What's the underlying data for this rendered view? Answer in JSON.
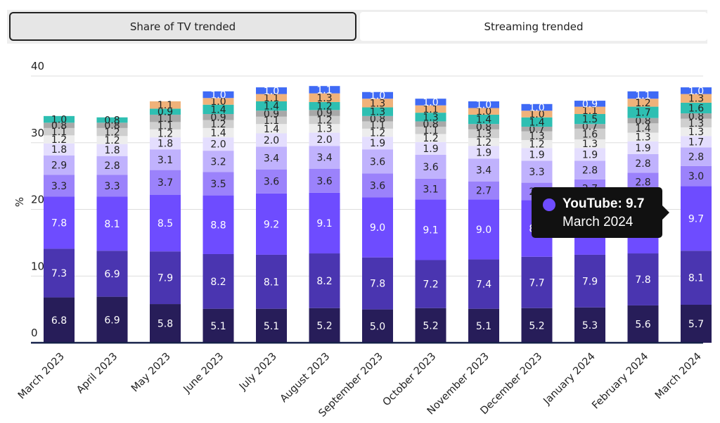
{
  "tabs": [
    {
      "label": "Share of TV trended",
      "active": true
    },
    {
      "label": "Streaming trended",
      "active": false
    }
  ],
  "tooltip": {
    "title": "YouTube: 9.7",
    "subtitle": "March 2024",
    "color": "#6e4cff"
  },
  "chart_data": {
    "type": "bar",
    "stacked": true,
    "ylabel": "%",
    "ylim": [
      0,
      40
    ],
    "yticks": [
      0,
      10,
      20,
      30,
      40
    ],
    "grid": true,
    "categories": [
      "March 2023",
      "April 2023",
      "May 2023",
      "June 2023",
      "July 2023",
      "August 2023",
      "September 2023",
      "October 2023",
      "November 2023",
      "December 2023",
      "January 2024",
      "February 2024",
      "March 2024"
    ],
    "series": [
      {
        "color": "#271d59",
        "label_color": "#ffffff",
        "values": [
          6.8,
          6.9,
          5.8,
          5.1,
          5.1,
          5.2,
          5.0,
          5.2,
          5.1,
          5.2,
          5.3,
          5.6,
          5.7
        ]
      },
      {
        "color": "#4a35b0",
        "label_color": "#ffffff",
        "values": [
          7.3,
          6.9,
          7.9,
          8.2,
          8.1,
          8.2,
          7.8,
          7.2,
          7.4,
          7.7,
          7.9,
          7.8,
          8.1
        ]
      },
      {
        "name": "YouTube",
        "color": "#6e4cff",
        "label_color": "#ffffff",
        "values": [
          7.8,
          8.1,
          8.5,
          8.8,
          9.2,
          9.1,
          9.0,
          9.1,
          9.0,
          8.5,
          8.6,
          9.3,
          9.7
        ]
      },
      {
        "color": "#9b82fb",
        "label_color": "#222222",
        "values": [
          3.3,
          3.3,
          3.7,
          3.5,
          3.6,
          3.6,
          3.6,
          3.1,
          2.7,
          2.6,
          2.7,
          2.8,
          3.0
        ]
      },
      {
        "color": "#c0b2fd",
        "label_color": "#222222",
        "values": [
          2.9,
          2.8,
          3.1,
          3.2,
          3.4,
          3.4,
          3.6,
          3.6,
          3.4,
          3.3,
          2.8,
          2.8,
          2.8
        ]
      },
      {
        "color": "#e4defe",
        "label_color": "#222222",
        "values": [
          1.8,
          1.8,
          1.8,
          2.0,
          2.0,
          2.0,
          1.9,
          1.9,
          1.9,
          1.9,
          1.9,
          1.9,
          1.7
        ]
      },
      {
        "color": "#ededed",
        "label_color": "#222222",
        "values": [
          1.2,
          1.2,
          1.2,
          1.4,
          1.4,
          1.3,
          1.2,
          1.2,
          1.2,
          1.2,
          1.3,
          1.3,
          1.3
        ]
      },
      {
        "color": "#cfcfcf",
        "label_color": "#222222",
        "values": [
          1.1,
          1.2,
          1.1,
          1.2,
          1.1,
          1.2,
          1.1,
          1.1,
          1.3,
          1.3,
          1.6,
          1.4,
          1.3
        ]
      },
      {
        "color": "#a8a8a8",
        "label_color": "#222222",
        "values": [
          0.8,
          0.8,
          1.1,
          0.9,
          0.9,
          0.9,
          0.8,
          0.8,
          0.8,
          0.7,
          0.7,
          0.8,
          0.8
        ]
      },
      {
        "color": "#2ebfb2",
        "label_color": "#222222",
        "values": [
          1.0,
          0.8,
          0.9,
          1.4,
          1.4,
          1.2,
          1.3,
          1.3,
          1.4,
          1.4,
          1.5,
          1.7,
          1.6
        ]
      },
      {
        "color": "#f0b27a",
        "label_color": "#222222",
        "values": [
          0.0,
          0.0,
          1.1,
          1.0,
          1.1,
          1.3,
          1.3,
          1.1,
          1.0,
          1.0,
          1.1,
          1.2,
          1.3
        ]
      },
      {
        "color": "#3f6af5",
        "label_color": "#ffffff",
        "values": [
          0.0,
          0.0,
          0.0,
          1.0,
          1.0,
          1.1,
          1.0,
          1.0,
          1.0,
          1.0,
          0.9,
          1.1,
          1.0
        ]
      }
    ]
  }
}
